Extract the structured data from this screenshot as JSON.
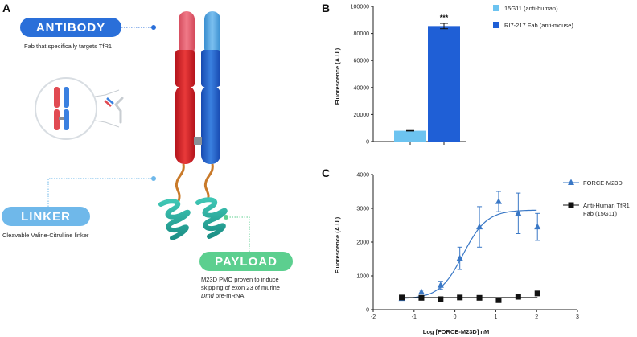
{
  "panel_a": {
    "letter": "A",
    "antibody": {
      "label": "ANTIBODY",
      "desc": "Fab that specifically targets TfR1",
      "color": "#2a6fd9"
    },
    "linker": {
      "label": "LINKER",
      "desc": "Cleavable Valine-Citrulline linker",
      "color": "#6fb8ea"
    },
    "payload": {
      "label": "PAYLOAD",
      "desc_line1": "M23D PMO proven to induce",
      "desc_line2": "skipping of exon 23 of murine",
      "desc_line3_italic": "Dmd",
      "desc_line3_rest": " pre-mRNA",
      "color": "#5ccf8f"
    }
  },
  "panel_b": {
    "letter": "B",
    "chart_data": {
      "type": "bar",
      "categories": [
        "15G11 (anti-human)",
        "RI7-217 Fab (anti-mouse)"
      ],
      "values": [
        8000,
        85500
      ],
      "errors": [
        200,
        2000
      ],
      "colors": [
        "#6cc3f0",
        "#1f5fd6"
      ],
      "ylabel": "Fluorescence (A.U.)",
      "ylim": [
        0,
        100000
      ],
      "yticks": [
        0,
        20000,
        40000,
        60000,
        80000,
        100000
      ],
      "annotation": "***",
      "legend": [
        "15G11 (anti-human)",
        "RI7-217 Fab (anti-mouse)"
      ],
      "legend_position": "right"
    }
  },
  "panel_c": {
    "letter": "C",
    "chart_data": {
      "type": "scatter",
      "xlabel": "Log [FORCE-M23D] nM",
      "ylabel": "Fluorescence (A.U.)",
      "xlim": [
        -2,
        3
      ],
      "ylim": [
        0,
        4000
      ],
      "xticks": [
        -2,
        -1,
        0,
        1,
        2,
        3
      ],
      "yticks": [
        0,
        1000,
        2000,
        3000,
        4000
      ],
      "legend_position": "right",
      "series": [
        {
          "name": "FORCE-M23D",
          "color": "#3a78c6",
          "marker": "triangle",
          "x": [
            -1.3,
            -0.82,
            -0.35,
            0.12,
            0.6,
            1.07,
            1.55,
            2.02
          ],
          "y": [
            330,
            520,
            720,
            1520,
            2450,
            3200,
            2850,
            2450
          ],
          "err": [
            40,
            60,
            120,
            330,
            600,
            300,
            600,
            400
          ],
          "fit": true
        },
        {
          "name": "Anti-Human TfR1\nFab (15G11)",
          "name_line1": "Anti-Human TfR1",
          "name_line2": "Fab (15G11)",
          "color": "#111111",
          "marker": "square",
          "x": [
            -1.3,
            -0.82,
            -0.35,
            0.12,
            0.6,
            1.07,
            1.55,
            2.02
          ],
          "y": [
            360,
            350,
            310,
            360,
            350,
            280,
            380,
            480
          ],
          "err": [
            0,
            0,
            0,
            0,
            0,
            0,
            0,
            0
          ],
          "fit": true
        }
      ]
    }
  }
}
